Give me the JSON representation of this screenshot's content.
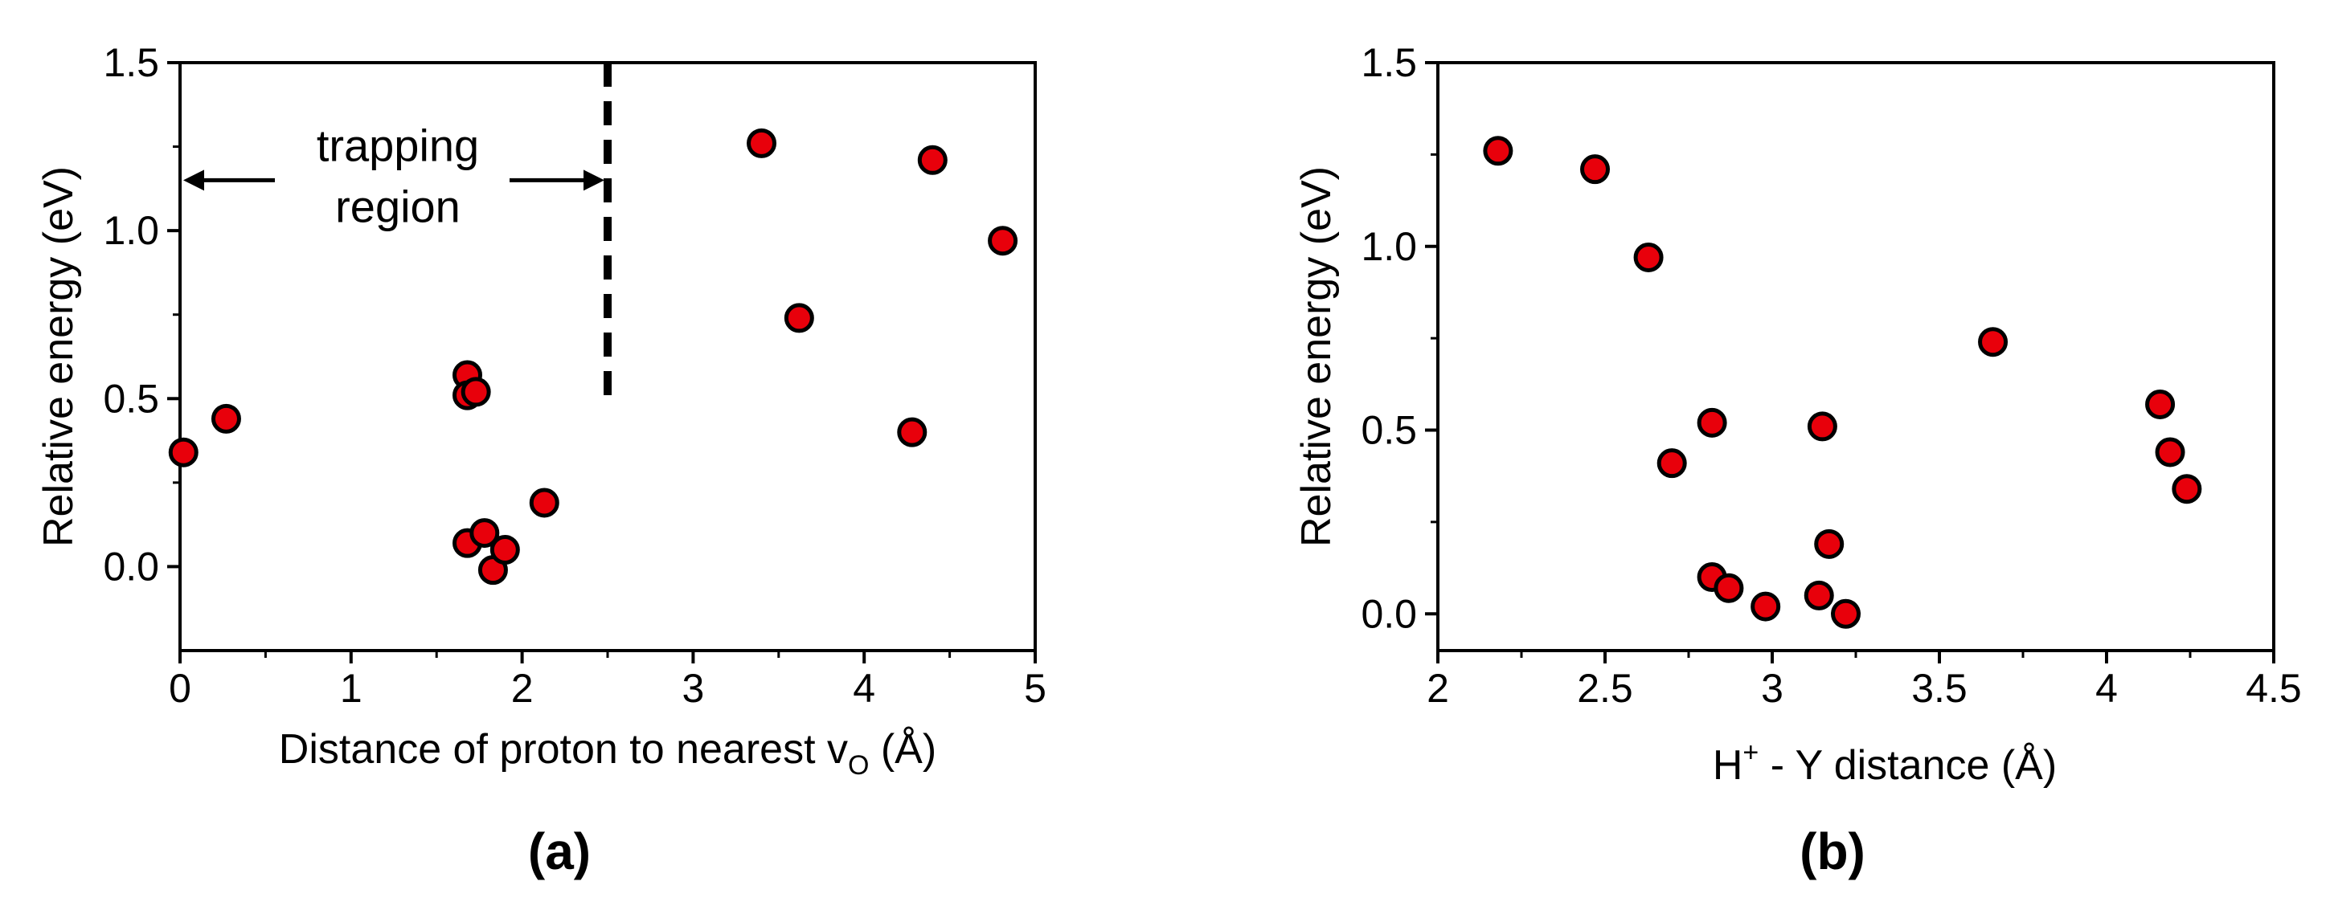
{
  "chart_data": [
    {
      "type": "scatter",
      "panel_label": "(a)",
      "xlabel": "Distance of proton to nearest v",
      "xlabel_subscript": "O",
      "xlabel_tail": " (Å)",
      "ylabel": "Relative energy (eV)",
      "xlim": [
        0,
        5
      ],
      "ylim": [
        -0.25,
        1.5
      ],
      "xticks": [
        "0",
        "1",
        "2",
        "3",
        "4",
        "5"
      ],
      "yticks": [
        "0.0",
        "0.5",
        "1.0",
        "1.5"
      ],
      "marker_color": "#e8000b",
      "annotation": {
        "line1": "trapping",
        "line2": "region",
        "boundary_x": 2.5,
        "arrow_y": 1.15,
        "boundary_y_range": [
          0.5,
          1.5
        ]
      },
      "points": [
        {
          "x": 0.02,
          "y": 0.34
        },
        {
          "x": 0.27,
          "y": 0.44
        },
        {
          "x": 1.68,
          "y": 0.57
        },
        {
          "x": 1.68,
          "y": 0.51
        },
        {
          "x": 1.73,
          "y": 0.52
        },
        {
          "x": 1.68,
          "y": 0.07
        },
        {
          "x": 1.78,
          "y": 0.1
        },
        {
          "x": 1.83,
          "y": -0.01
        },
        {
          "x": 1.9,
          "y": 0.05
        },
        {
          "x": 2.13,
          "y": 0.19
        },
        {
          "x": 3.4,
          "y": 1.26
        },
        {
          "x": 3.62,
          "y": 0.74
        },
        {
          "x": 4.28,
          "y": 0.4
        },
        {
          "x": 4.4,
          "y": 1.21
        },
        {
          "x": 4.81,
          "y": 0.97
        }
      ]
    },
    {
      "type": "scatter",
      "panel_label": "(b)",
      "xlabel": "H",
      "xlabel_superscript": "+",
      "xlabel_tail": " - Y distance (Å)",
      "ylabel": "Relative energy (eV)",
      "xlim": [
        2,
        4.5
      ],
      "ylim": [
        -0.1,
        1.5
      ],
      "xticks": [
        "2",
        "2.5",
        "3",
        "3.5",
        "4",
        "4.5"
      ],
      "yticks": [
        "0.0",
        "0.5",
        "1.0",
        "1.5"
      ],
      "marker_color": "#e8000b",
      "points": [
        {
          "x": 2.18,
          "y": 1.26
        },
        {
          "x": 2.47,
          "y": 1.21
        },
        {
          "x": 2.63,
          "y": 0.97
        },
        {
          "x": 2.7,
          "y": 0.41
        },
        {
          "x": 2.82,
          "y": 0.52
        },
        {
          "x": 2.82,
          "y": 0.1
        },
        {
          "x": 2.87,
          "y": 0.07
        },
        {
          "x": 2.98,
          "y": 0.02
        },
        {
          "x": 3.14,
          "y": 0.05
        },
        {
          "x": 3.15,
          "y": 0.51
        },
        {
          "x": 3.17,
          "y": 0.19
        },
        {
          "x": 3.22,
          "y": 0.0
        },
        {
          "x": 3.66,
          "y": 0.74
        },
        {
          "x": 4.16,
          "y": 0.57
        },
        {
          "x": 4.19,
          "y": 0.44
        },
        {
          "x": 4.24,
          "y": 0.34
        }
      ]
    }
  ]
}
